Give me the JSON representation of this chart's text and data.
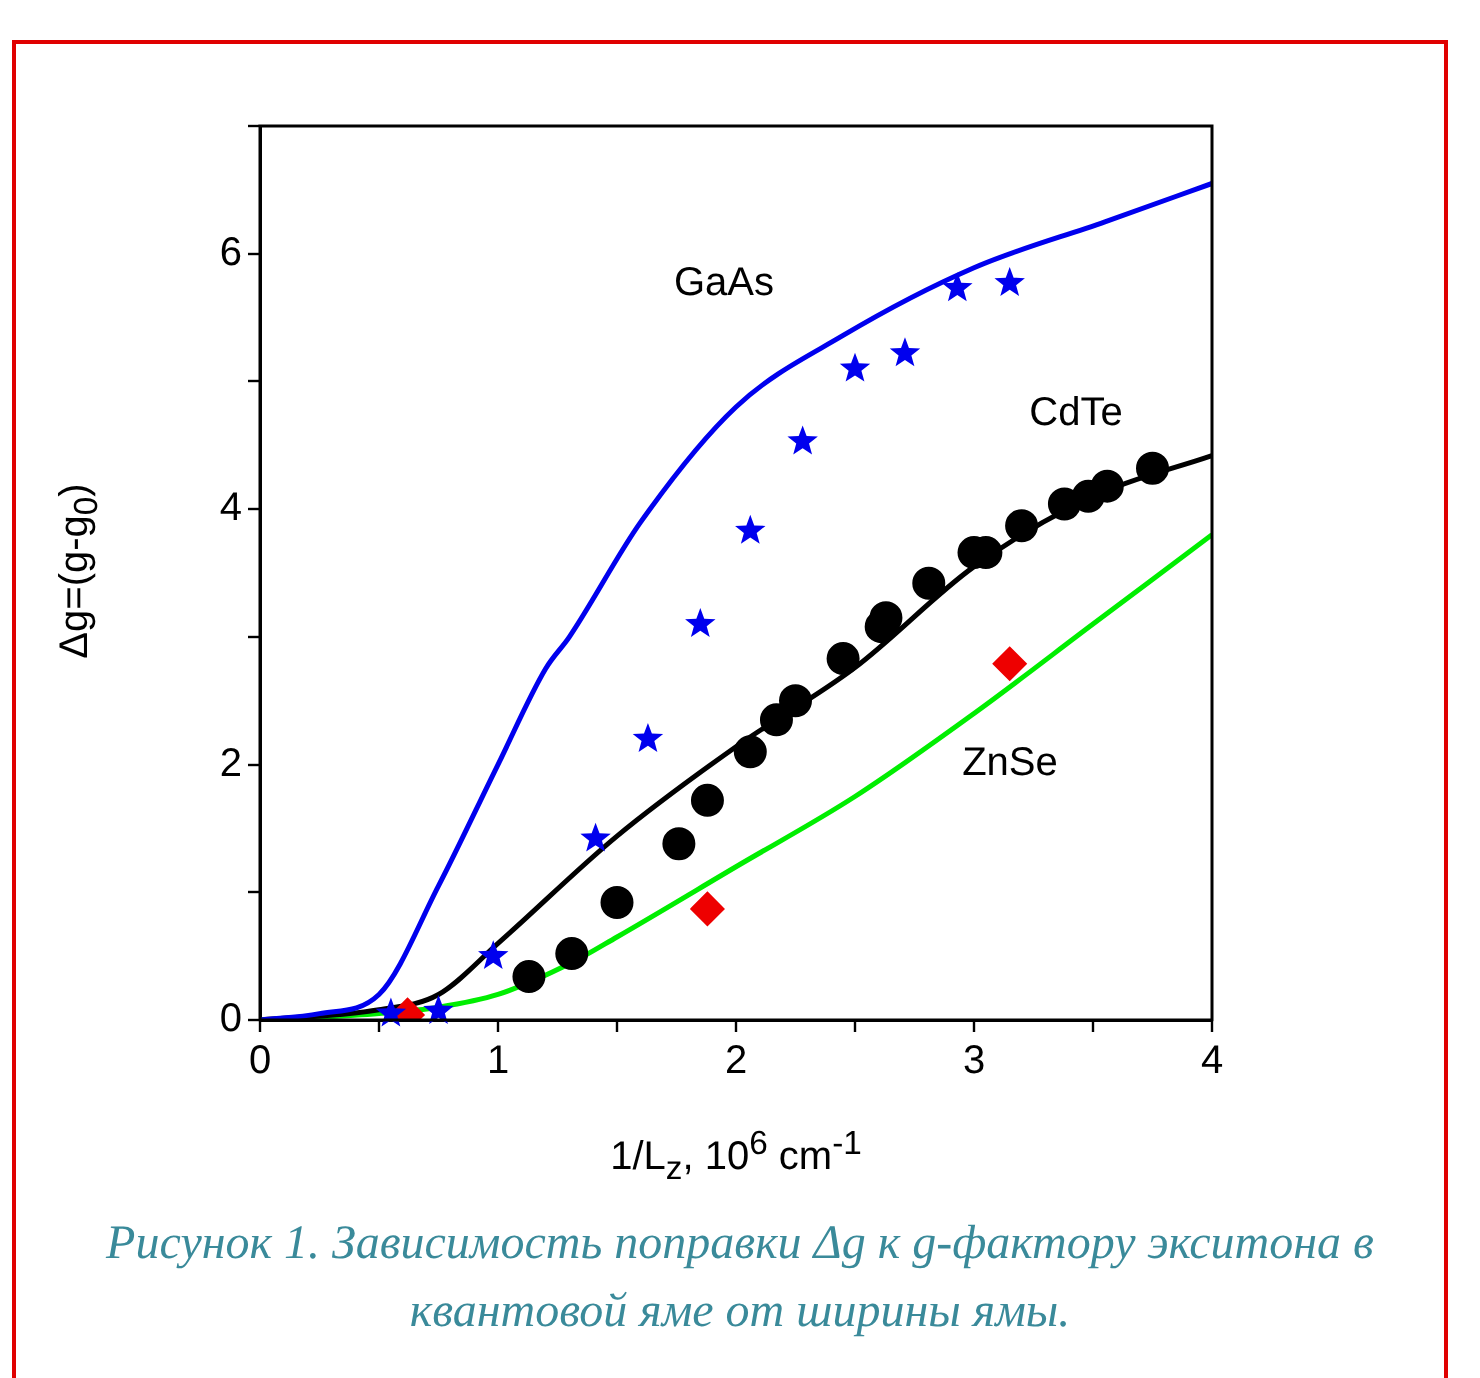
{
  "chart_data": {
    "type": "line",
    "xlabel": "1/L$_{z}$, 10$^{6}$ cm$^{-1}$",
    "ylabel": "Δg=(g-g$_{0}$)",
    "xlim": [
      0,
      4
    ],
    "ylim": [
      0,
      7
    ],
    "xticks": [
      0,
      {
        "value": 0.5,
        "label": null
      },
      1,
      {
        "value": 1.5,
        "label": null
      },
      2,
      {
        "value": 2.5,
        "label": null
      },
      3,
      {
        "value": 3.5,
        "label": null
      },
      4
    ],
    "yticks": [
      0,
      {
        "value": 1,
        "label": null
      },
      2,
      {
        "value": 3,
        "label": null
      },
      4,
      {
        "value": 5,
        "label": null
      },
      6,
      {
        "value": 7,
        "label": null
      }
    ],
    "grid": false,
    "legend": false,
    "series": [
      {
        "type": "line",
        "name": "GaAs",
        "color": "#0000ee",
        "marker": "none",
        "x": [
          0,
          0.25,
          0.5,
          0.75,
          1.0,
          1.2,
          1.3,
          1.6,
          2.0,
          2.45,
          3.0,
          3.55,
          4.0
        ],
        "values": [
          0,
          0.05,
          0.2,
          1.05,
          2.0,
          2.75,
          3.0,
          3.9,
          4.8,
          5.36,
          5.89,
          6.25,
          6.55
        ]
      },
      {
        "type": "line",
        "name": "CdTe",
        "color": "#000000",
        "marker": "none",
        "x": [
          0,
          0.5,
          0.75,
          1.0,
          1.5,
          2.0,
          2.5,
          3.0,
          3.5,
          4.0
        ],
        "values": [
          0,
          0.08,
          0.2,
          0.6,
          1.44,
          2.14,
          2.76,
          3.55,
          4.1,
          4.42
        ]
      },
      {
        "type": "line",
        "name": "ZnSe",
        "color": "#00ee00",
        "marker": "none",
        "x": [
          0,
          0.25,
          0.5,
          0.75,
          1.0,
          1.3,
          1.5,
          2.0,
          2.5,
          3.0,
          3.5,
          4.0
        ],
        "values": [
          0,
          0.02,
          0.05,
          0.1,
          0.2,
          0.44,
          0.65,
          1.2,
          1.75,
          2.4,
          3.1,
          3.8
        ]
      },
      {
        "type": "scatter",
        "color": "#0000ee",
        "marker": "star",
        "x": [
          0.55,
          0.75,
          0.98,
          1.41,
          1.63,
          1.85,
          2.06,
          2.28,
          2.5,
          2.71,
          2.93,
          3.15
        ],
        "values": [
          0.05,
          0.07,
          0.5,
          1.42,
          2.2,
          3.1,
          3.83,
          4.53,
          5.1,
          5.22,
          5.73,
          5.77
        ]
      },
      {
        "type": "scatter",
        "color": "#000000",
        "marker": "circle",
        "x": [
          1.13,
          1.31,
          1.5,
          1.76,
          1.88,
          2.06,
          2.17,
          2.25,
          2.45,
          2.61,
          2.63,
          2.81,
          3.0,
          3.05,
          3.2,
          3.38,
          3.48,
          3.56,
          3.75
        ],
        "values": [
          0.34,
          0.52,
          0.92,
          1.38,
          1.72,
          2.1,
          2.35,
          2.5,
          2.83,
          3.08,
          3.15,
          3.42,
          3.66,
          3.66,
          3.87,
          4.04,
          4.1,
          4.18,
          4.32
        ]
      },
      {
        "type": "scatter",
        "color": "#ee0000",
        "marker": "diamond",
        "x": [
          0.62,
          1.88,
          3.15
        ],
        "values": [
          0.04,
          0.87,
          2.79
        ]
      }
    ],
    "annotations": [
      "Рисунок 1. Зависимость поправки Δg к g-фактору экситона в квантовой яме от ширины ямы."
    ]
  }
}
